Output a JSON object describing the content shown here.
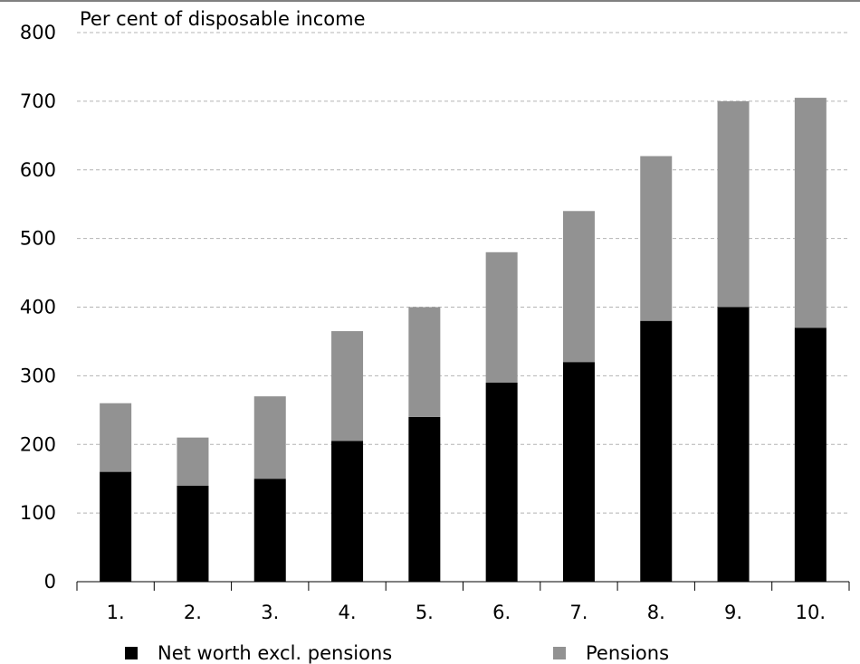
{
  "chart_data": {
    "type": "bar",
    "stacked": true,
    "unit_label": "Per cent of disposable income",
    "categories": [
      "1.",
      "2.",
      "3.",
      "4.",
      "5.",
      "6.",
      "7.",
      "8.",
      "9.",
      "10."
    ],
    "series": [
      {
        "name": "Net worth excl. pensions",
        "color": "#000000",
        "values": [
          160,
          140,
          150,
          205,
          240,
          290,
          320,
          380,
          400,
          370
        ]
      },
      {
        "name": "Pensions",
        "color": "#929292",
        "values": [
          100,
          70,
          120,
          160,
          160,
          190,
          220,
          240,
          300,
          335
        ]
      }
    ],
    "ylim": [
      0,
      800
    ],
    "yticks": [
      "0",
      "100",
      "200",
      "300",
      "400",
      "500",
      "600",
      "700",
      "800"
    ],
    "grid": true,
    "legend_position": "bottom"
  }
}
